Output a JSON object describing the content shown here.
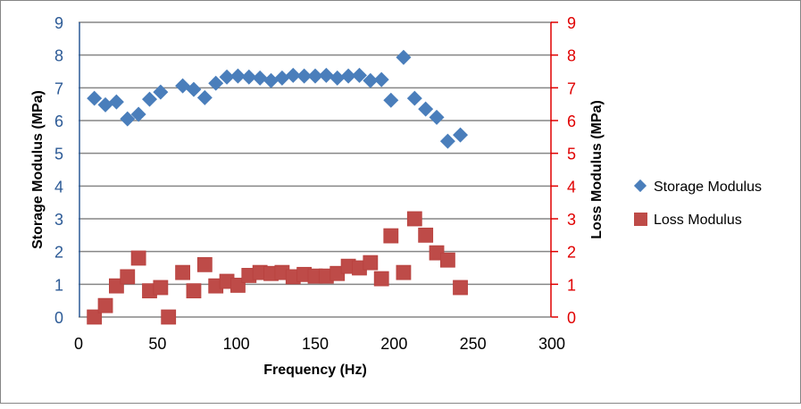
{
  "chart_data": {
    "type": "scatter",
    "title": "",
    "xlabel": "Frequency (Hz)",
    "ylabel": "Storage Modulus (MPa)",
    "y2label": "Loss Modulus (MPa)",
    "xlim": [
      0,
      300
    ],
    "ylim": [
      0,
      9
    ],
    "y2lim": [
      0,
      9
    ],
    "xticks": [
      0,
      50,
      100,
      150,
      200,
      250,
      300
    ],
    "yticks": [
      0,
      1,
      2,
      3,
      4,
      5,
      6,
      7,
      8,
      9
    ],
    "y2ticks": [
      0,
      1,
      2,
      3,
      4,
      5,
      6,
      7,
      8,
      9
    ],
    "grid": "horizontal",
    "legend": "right",
    "axis_colors": {
      "left": "#2c5a96",
      "right": "#e00000"
    },
    "series": [
      {
        "name": "Storage Modulus",
        "marker": "diamond",
        "color": "#4a7ebb",
        "axis": "left",
        "points": [
          [
            10,
            6.68
          ],
          [
            17,
            6.48
          ],
          [
            24,
            6.57
          ],
          [
            31,
            6.05
          ],
          [
            38,
            6.19
          ],
          [
            45,
            6.65
          ],
          [
            52,
            6.87
          ],
          [
            66,
            7.06
          ],
          [
            73,
            6.95
          ],
          [
            80,
            6.7
          ],
          [
            87,
            7.14
          ],
          [
            94,
            7.33
          ],
          [
            101,
            7.36
          ],
          [
            108,
            7.33
          ],
          [
            115,
            7.3
          ],
          [
            122,
            7.22
          ],
          [
            129,
            7.3
          ],
          [
            136,
            7.38
          ],
          [
            143,
            7.36
          ],
          [
            150,
            7.36
          ],
          [
            157,
            7.38
          ],
          [
            164,
            7.3
          ],
          [
            171,
            7.36
          ],
          [
            178,
            7.38
          ],
          [
            185,
            7.22
          ],
          [
            192,
            7.25
          ],
          [
            198,
            6.62
          ],
          [
            206,
            7.93
          ],
          [
            213,
            6.68
          ],
          [
            220,
            6.35
          ],
          [
            227,
            6.1
          ],
          [
            234,
            5.37
          ],
          [
            242,
            5.56
          ]
        ]
      },
      {
        "name": "Loss Modulus",
        "marker": "square",
        "color": "#be4b48",
        "axis": "right",
        "points": [
          [
            10,
            0.0
          ],
          [
            17,
            0.35
          ],
          [
            24,
            0.95
          ],
          [
            31,
            1.23
          ],
          [
            38,
            1.8
          ],
          [
            45,
            0.8
          ],
          [
            52,
            0.9
          ],
          [
            57,
            0.0
          ],
          [
            66,
            1.36
          ],
          [
            73,
            0.8
          ],
          [
            80,
            1.6
          ],
          [
            87,
            0.95
          ],
          [
            94,
            1.09
          ],
          [
            101,
            0.97
          ],
          [
            108,
            1.27
          ],
          [
            115,
            1.36
          ],
          [
            122,
            1.33
          ],
          [
            129,
            1.36
          ],
          [
            136,
            1.23
          ],
          [
            143,
            1.3
          ],
          [
            150,
            1.25
          ],
          [
            157,
            1.25
          ],
          [
            164,
            1.33
          ],
          [
            171,
            1.55
          ],
          [
            178,
            1.5
          ],
          [
            185,
            1.66
          ],
          [
            192,
            1.17
          ],
          [
            198,
            2.48
          ],
          [
            206,
            1.36
          ],
          [
            213,
            3.0
          ],
          [
            220,
            2.5
          ],
          [
            227,
            1.96
          ],
          [
            234,
            1.74
          ],
          [
            242,
            0.9
          ]
        ]
      }
    ]
  }
}
